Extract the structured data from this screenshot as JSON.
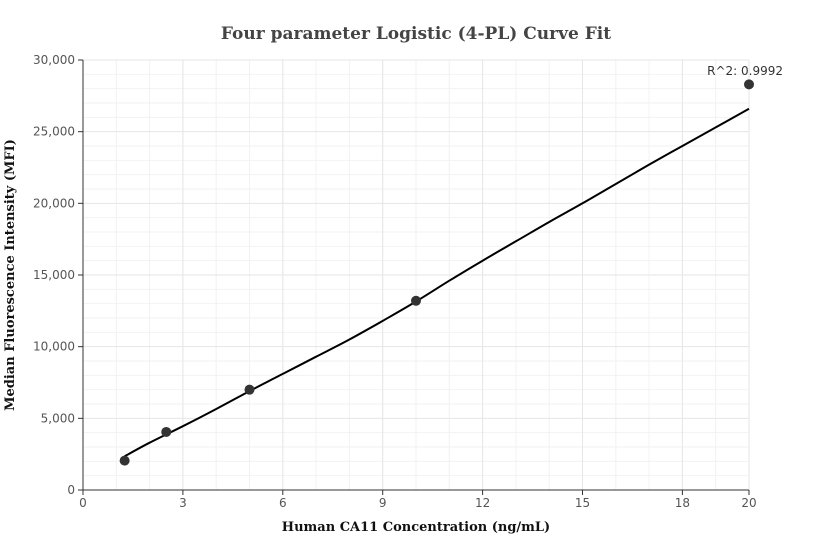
{
  "chart_data": {
    "type": "scatter",
    "title": "Four parameter Logistic (4-PL) Curve Fit",
    "xlabel": "Human CA11 Concentration (ng/mL)",
    "ylabel": "Median Fluorescence Intensity (MFI)",
    "xlim": [
      0,
      20
    ],
    "ylim": [
      0,
      30000
    ],
    "x_ticks": [
      0,
      3,
      6,
      9,
      12,
      15,
      18,
      20
    ],
    "x_tick_labels": [
      "0",
      "3",
      "6",
      "9",
      "12",
      "15",
      "18",
      "20"
    ],
    "y_ticks": [
      0,
      5000,
      10000,
      15000,
      20000,
      25000,
      30000
    ],
    "y_tick_labels": [
      "0",
      "5,000",
      "10,000",
      "15,000",
      "20,000",
      "25,000",
      "30,000"
    ],
    "grid": true,
    "points": {
      "x": [
        1.25,
        2.5,
        5,
        10,
        20
      ],
      "y": [
        2050,
        4050,
        7000,
        13200,
        28300
      ]
    },
    "fit_curve": {
      "x": [
        1.25,
        2,
        3,
        4,
        5,
        6,
        7,
        8,
        9,
        10,
        11,
        12,
        13,
        14,
        15,
        16,
        17,
        18,
        19,
        20
      ],
      "y": [
        2350,
        3300,
        4450,
        5650,
        6900,
        8100,
        9300,
        10500,
        11800,
        13150,
        14600,
        16000,
        17350,
        18700,
        20000,
        21350,
        22700,
        24000,
        25300,
        26600
      ]
    },
    "annotation": "R^2: 0.9992",
    "colors": {
      "curve": "#000000",
      "points": "#333333",
      "grid": "#e6e6e6"
    }
  }
}
